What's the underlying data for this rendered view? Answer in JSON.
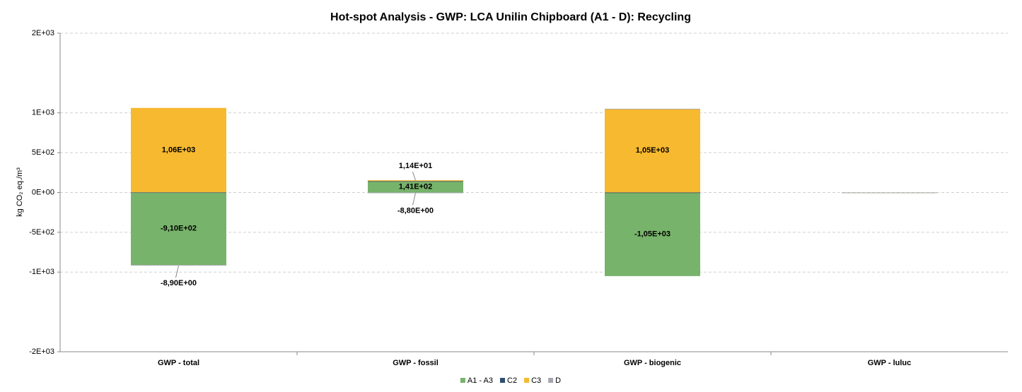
{
  "chart_data": {
    "type": "stacked_bar",
    "title": "Hot-spot Analysis - GWP: LCA Unilin Chipboard (A1 - D): Recycling",
    "y_label": "kg CO₂ eq./m³",
    "categories": [
      "GWP - total",
      "GWP - fossil",
      "GWP - biogenic",
      "GWP - luluc"
    ],
    "series": [
      {
        "name": "A1 - A3",
        "color": "#77b36b",
        "values": [
          -910,
          141,
          -1050,
          0
        ],
        "value_labels": [
          "-9,10E+02",
          "1,41E+02",
          "-1,05E+03",
          null
        ]
      },
      {
        "name": "C2",
        "color": "#2f4f73",
        "values": [
          2,
          1,
          0,
          0
        ],
        "value_labels": [
          null,
          null,
          null,
          null
        ]
      },
      {
        "name": "C3",
        "color": "#f6b92f",
        "values": [
          1060,
          11.4,
          1050,
          0
        ],
        "value_labels": [
          "1,06E+03",
          "1,14E+01",
          "1,05E+03",
          null
        ]
      },
      {
        "name": "D",
        "color": "#a5a5ad",
        "values": [
          -8.9,
          -8.8,
          0,
          0
        ],
        "value_labels": [
          "-8,90E+00",
          "-8,80E+00",
          null,
          null
        ]
      }
    ],
    "ylim": [
      -2000,
      2000
    ],
    "yticks": [
      {
        "value": -2000,
        "label": "-2E+03"
      },
      {
        "value": -1000,
        "label": "-1E+03"
      },
      {
        "value": -500,
        "label": "-5E+02"
      },
      {
        "value": 0,
        "label": "0E+00"
      },
      {
        "value": 500,
        "label": "5E+02"
      },
      {
        "value": 1000,
        "label": "1E+03"
      },
      {
        "value": 2000,
        "label": "2E+03"
      }
    ],
    "grid": true,
    "legend": "bottom"
  }
}
